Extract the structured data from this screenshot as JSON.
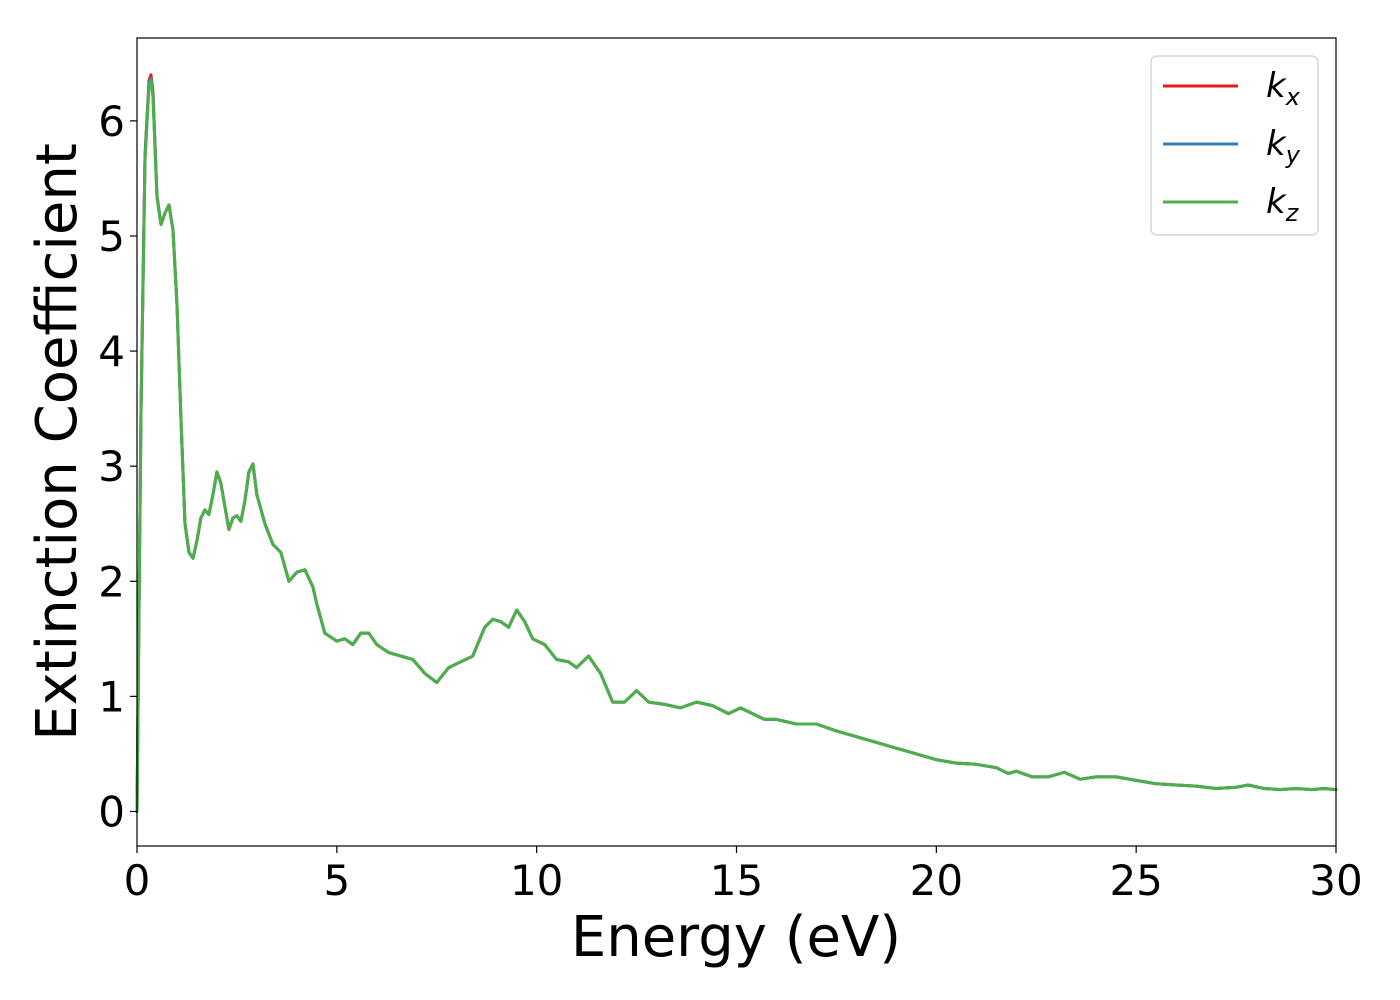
{
  "chart_data": {
    "type": "line",
    "xlabel": "Energy (eV)",
    "ylabel": "Extinction Coefficient",
    "xlim": [
      0,
      30
    ],
    "ylim": [
      -0.3,
      6.72
    ],
    "xticks": [
      0,
      5,
      10,
      15,
      20,
      25,
      30
    ],
    "yticks": [
      0,
      1,
      2,
      3,
      4,
      5,
      6
    ],
    "grid": false,
    "legend_position": "top-right",
    "series": [
      {
        "name": "k_x",
        "color": "#e41a1c",
        "x": [
          0,
          0.1,
          0.2,
          0.3,
          0.35,
          0.4,
          0.5,
          0.6,
          0.7,
          0.8,
          0.9,
          1.0,
          1.1,
          1.2,
          1.3,
          1.4,
          1.5,
          1.6,
          1.7,
          1.8,
          1.9,
          2.0,
          2.1,
          2.2,
          2.3,
          2.4,
          2.5,
          2.6,
          2.7,
          2.8,
          2.9,
          3.0,
          3.2,
          3.4,
          3.6,
          3.8,
          4.0,
          4.2,
          4.4,
          4.5,
          4.7,
          5.0,
          5.2,
          5.4,
          5.6,
          5.8,
          6.0,
          6.3,
          6.6,
          6.9,
          7.2,
          7.5,
          7.8,
          8.1,
          8.4,
          8.7,
          8.9,
          9.1,
          9.3,
          9.5,
          9.7,
          9.9,
          10.2,
          10.5,
          10.8,
          11.0,
          11.3,
          11.6,
          11.9,
          12.2,
          12.5,
          12.8,
          13.2,
          13.6,
          14.0,
          14.4,
          14.8,
          15.1,
          15.4,
          15.7,
          16.0,
          16.5,
          17.0,
          17.5,
          18.0,
          18.5,
          19.0,
          19.5,
          20.0,
          20.5,
          21.0,
          21.5,
          21.8,
          22.0,
          22.4,
          22.8,
          23.2,
          23.6,
          24.0,
          24.5,
          25.0,
          25.5,
          26.0,
          26.5,
          27.0,
          27.5,
          27.8,
          28.2,
          28.6,
          29.0,
          29.4,
          29.7,
          30.0
        ],
        "values": [
          0.0,
          3.5,
          5.7,
          6.35,
          6.4,
          6.25,
          5.35,
          5.1,
          5.2,
          5.27,
          5.05,
          4.4,
          3.4,
          2.5,
          2.25,
          2.2,
          2.35,
          2.55,
          2.62,
          2.58,
          2.75,
          2.95,
          2.85,
          2.65,
          2.45,
          2.55,
          2.57,
          2.52,
          2.7,
          2.95,
          3.02,
          2.75,
          2.5,
          2.32,
          2.25,
          2.0,
          2.08,
          2.1,
          1.95,
          1.8,
          1.55,
          1.48,
          1.5,
          1.45,
          1.55,
          1.55,
          1.45,
          1.38,
          1.35,
          1.32,
          1.2,
          1.12,
          1.25,
          1.3,
          1.35,
          1.6,
          1.67,
          1.65,
          1.6,
          1.75,
          1.65,
          1.5,
          1.45,
          1.32,
          1.3,
          1.25,
          1.35,
          1.2,
          0.95,
          0.95,
          1.05,
          0.95,
          0.93,
          0.9,
          0.95,
          0.92,
          0.85,
          0.9,
          0.85,
          0.8,
          0.8,
          0.76,
          0.76,
          0.7,
          0.65,
          0.6,
          0.55,
          0.5,
          0.45,
          0.42,
          0.41,
          0.38,
          0.33,
          0.35,
          0.3,
          0.3,
          0.34,
          0.28,
          0.3,
          0.3,
          0.27,
          0.24,
          0.23,
          0.22,
          0.2,
          0.21,
          0.23,
          0.2,
          0.19,
          0.2,
          0.19,
          0.2,
          0.19
        ]
      },
      {
        "name": "k_y",
        "color": "#377eb8",
        "x": [
          0,
          0.1,
          0.2,
          0.3,
          0.35,
          0.4,
          0.5,
          0.6,
          0.7,
          0.8,
          0.9,
          1.0,
          1.1,
          1.2,
          1.3,
          1.4,
          1.5,
          1.6,
          1.7,
          1.8,
          1.9,
          2.0,
          2.1,
          2.2,
          2.3,
          2.4,
          2.5,
          2.6,
          2.7,
          2.8,
          2.9,
          3.0,
          3.2,
          3.4,
          3.6,
          3.8,
          4.0,
          4.2,
          4.4,
          4.5,
          4.7,
          5.0,
          5.2,
          5.4,
          5.6,
          5.8,
          6.0,
          6.3,
          6.6,
          6.9,
          7.2,
          7.5,
          7.8,
          8.1,
          8.4,
          8.7,
          8.9,
          9.1,
          9.3,
          9.5,
          9.7,
          9.9,
          10.2,
          10.5,
          10.8,
          11.0,
          11.3,
          11.6,
          11.9,
          12.2,
          12.5,
          12.8,
          13.2,
          13.6,
          14.0,
          14.4,
          14.8,
          15.1,
          15.4,
          15.7,
          16.0,
          16.5,
          17.0,
          17.5,
          18.0,
          18.5,
          19.0,
          19.5,
          20.0,
          20.5,
          21.0,
          21.5,
          21.8,
          22.0,
          22.4,
          22.8,
          23.2,
          23.6,
          24.0,
          24.5,
          25.0,
          25.5,
          26.0,
          26.5,
          27.0,
          27.5,
          27.8,
          28.2,
          28.6,
          29.0,
          29.4,
          29.7,
          30.0
        ],
        "values": [
          0.0,
          3.48,
          5.68,
          6.33,
          6.37,
          6.23,
          5.34,
          5.1,
          5.2,
          5.27,
          5.05,
          4.4,
          3.4,
          2.5,
          2.25,
          2.2,
          2.35,
          2.55,
          2.62,
          2.58,
          2.75,
          2.95,
          2.85,
          2.65,
          2.45,
          2.55,
          2.57,
          2.52,
          2.7,
          2.95,
          3.02,
          2.75,
          2.5,
          2.32,
          2.25,
          2.0,
          2.08,
          2.1,
          1.95,
          1.8,
          1.55,
          1.48,
          1.5,
          1.45,
          1.55,
          1.55,
          1.45,
          1.38,
          1.35,
          1.32,
          1.2,
          1.12,
          1.25,
          1.3,
          1.35,
          1.6,
          1.67,
          1.65,
          1.6,
          1.75,
          1.65,
          1.5,
          1.45,
          1.32,
          1.3,
          1.25,
          1.35,
          1.2,
          0.95,
          0.95,
          1.05,
          0.95,
          0.93,
          0.9,
          0.95,
          0.92,
          0.85,
          0.9,
          0.85,
          0.8,
          0.8,
          0.76,
          0.76,
          0.7,
          0.65,
          0.6,
          0.55,
          0.5,
          0.45,
          0.42,
          0.41,
          0.38,
          0.33,
          0.35,
          0.3,
          0.3,
          0.34,
          0.28,
          0.3,
          0.3,
          0.27,
          0.24,
          0.23,
          0.22,
          0.2,
          0.21,
          0.23,
          0.2,
          0.19,
          0.2,
          0.19,
          0.2,
          0.19
        ]
      },
      {
        "name": "k_z",
        "color": "#4daf4a",
        "x": [
          0,
          0.1,
          0.2,
          0.3,
          0.35,
          0.4,
          0.5,
          0.6,
          0.7,
          0.8,
          0.9,
          1.0,
          1.1,
          1.2,
          1.3,
          1.4,
          1.5,
          1.6,
          1.7,
          1.8,
          1.9,
          2.0,
          2.1,
          2.2,
          2.3,
          2.4,
          2.5,
          2.6,
          2.7,
          2.8,
          2.9,
          3.0,
          3.2,
          3.4,
          3.6,
          3.8,
          4.0,
          4.2,
          4.4,
          4.5,
          4.7,
          5.0,
          5.2,
          5.4,
          5.6,
          5.8,
          6.0,
          6.3,
          6.6,
          6.9,
          7.2,
          7.5,
          7.8,
          8.1,
          8.4,
          8.7,
          8.9,
          9.1,
          9.3,
          9.5,
          9.7,
          9.9,
          10.2,
          10.5,
          10.8,
          11.0,
          11.3,
          11.6,
          11.9,
          12.2,
          12.5,
          12.8,
          13.2,
          13.6,
          14.0,
          14.4,
          14.8,
          15.1,
          15.4,
          15.7,
          16.0,
          16.5,
          17.0,
          17.5,
          18.0,
          18.5,
          19.0,
          19.5,
          20.0,
          20.5,
          21.0,
          21.5,
          21.8,
          22.0,
          22.4,
          22.8,
          23.2,
          23.6,
          24.0,
          24.5,
          25.0,
          25.5,
          26.0,
          26.5,
          27.0,
          27.5,
          27.8,
          28.2,
          28.6,
          29.0,
          29.4,
          29.7,
          30.0
        ],
        "values": [
          0.0,
          3.45,
          5.65,
          6.3,
          6.35,
          6.2,
          5.33,
          5.1,
          5.2,
          5.27,
          5.05,
          4.4,
          3.4,
          2.5,
          2.25,
          2.2,
          2.35,
          2.55,
          2.62,
          2.58,
          2.75,
          2.95,
          2.85,
          2.65,
          2.45,
          2.55,
          2.57,
          2.52,
          2.7,
          2.95,
          3.02,
          2.75,
          2.5,
          2.32,
          2.25,
          2.0,
          2.08,
          2.1,
          1.95,
          1.8,
          1.55,
          1.48,
          1.5,
          1.45,
          1.55,
          1.55,
          1.45,
          1.38,
          1.35,
          1.32,
          1.2,
          1.12,
          1.25,
          1.3,
          1.35,
          1.6,
          1.67,
          1.65,
          1.6,
          1.75,
          1.65,
          1.5,
          1.45,
          1.32,
          1.3,
          1.25,
          1.35,
          1.2,
          0.95,
          0.95,
          1.05,
          0.95,
          0.93,
          0.9,
          0.95,
          0.92,
          0.85,
          0.9,
          0.85,
          0.8,
          0.8,
          0.76,
          0.76,
          0.7,
          0.65,
          0.6,
          0.55,
          0.5,
          0.45,
          0.42,
          0.41,
          0.38,
          0.33,
          0.35,
          0.3,
          0.3,
          0.34,
          0.28,
          0.3,
          0.3,
          0.27,
          0.24,
          0.23,
          0.22,
          0.2,
          0.21,
          0.23,
          0.2,
          0.19,
          0.2,
          0.19,
          0.2,
          0.19
        ]
      }
    ],
    "legend": [
      {
        "base": "k",
        "sub": "x",
        "color": "#e41a1c"
      },
      {
        "base": "k",
        "sub": "y",
        "color": "#377eb8"
      },
      {
        "base": "k",
        "sub": "z",
        "color": "#4daf4a"
      }
    ]
  }
}
